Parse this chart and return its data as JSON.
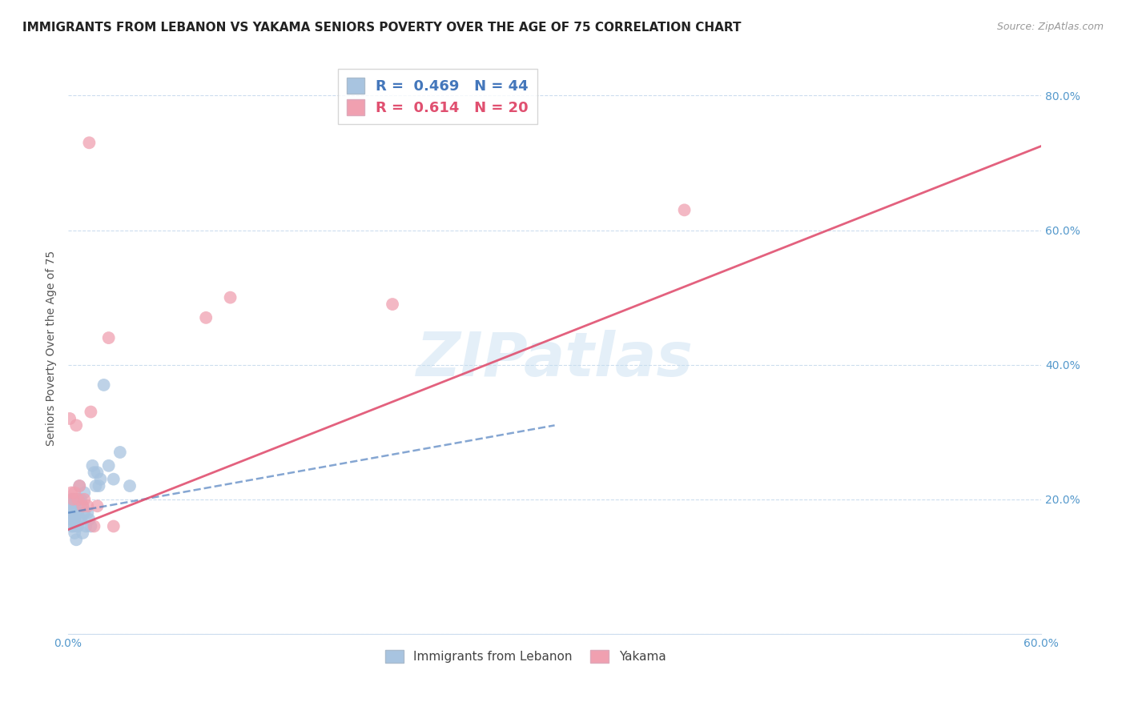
{
  "title": "IMMIGRANTS FROM LEBANON VS YAKAMA SENIORS POVERTY OVER THE AGE OF 75 CORRELATION CHART",
  "source": "Source: ZipAtlas.com",
  "xlabel": "",
  "ylabel": "Seniors Poverty Over the Age of 75",
  "xlim": [
    0.0,
    0.6
  ],
  "ylim": [
    0.0,
    0.85
  ],
  "xticks": [
    0.0,
    0.1,
    0.2,
    0.3,
    0.4,
    0.5,
    0.6
  ],
  "yticks": [
    0.0,
    0.2,
    0.4,
    0.6,
    0.8
  ],
  "ytick_labels": [
    "",
    "20.0%",
    "40.0%",
    "60.0%",
    "80.0%"
  ],
  "xtick_labels": [
    "0.0%",
    "",
    "",
    "",
    "",
    "",
    "60.0%"
  ],
  "blue_R": 0.469,
  "blue_N": 44,
  "pink_R": 0.614,
  "pink_N": 20,
  "blue_color": "#a8c4e0",
  "pink_color": "#f0a0b0",
  "blue_line_color": "#4477bb",
  "pink_line_color": "#e05070",
  "axis_color": "#5599cc",
  "watermark": "ZIPatlas",
  "blue_scatter_x": [
    0.001,
    0.001,
    0.002,
    0.002,
    0.002,
    0.002,
    0.003,
    0.003,
    0.003,
    0.003,
    0.004,
    0.004,
    0.004,
    0.005,
    0.005,
    0.005,
    0.005,
    0.006,
    0.006,
    0.006,
    0.007,
    0.007,
    0.007,
    0.008,
    0.008,
    0.009,
    0.009,
    0.01,
    0.01,
    0.011,
    0.012,
    0.013,
    0.014,
    0.015,
    0.016,
    0.017,
    0.018,
    0.019,
    0.02,
    0.022,
    0.025,
    0.028,
    0.032,
    0.038
  ],
  "blue_scatter_y": [
    0.19,
    0.18,
    0.2,
    0.18,
    0.17,
    0.16,
    0.2,
    0.19,
    0.17,
    0.16,
    0.19,
    0.17,
    0.15,
    0.2,
    0.18,
    0.16,
    0.14,
    0.2,
    0.18,
    0.16,
    0.22,
    0.2,
    0.17,
    0.2,
    0.17,
    0.19,
    0.15,
    0.21,
    0.18,
    0.16,
    0.18,
    0.17,
    0.16,
    0.25,
    0.24,
    0.22,
    0.24,
    0.22,
    0.23,
    0.37,
    0.25,
    0.23,
    0.27,
    0.22
  ],
  "pink_scatter_x": [
    0.001,
    0.002,
    0.003,
    0.004,
    0.005,
    0.006,
    0.007,
    0.009,
    0.01,
    0.012,
    0.013,
    0.014,
    0.016,
    0.018,
    0.025,
    0.028,
    0.085,
    0.1,
    0.2,
    0.38
  ],
  "pink_scatter_y": [
    0.32,
    0.21,
    0.2,
    0.21,
    0.31,
    0.2,
    0.22,
    0.19,
    0.2,
    0.19,
    0.73,
    0.33,
    0.16,
    0.19,
    0.44,
    0.16,
    0.47,
    0.5,
    0.49,
    0.63
  ],
  "blue_line_x": [
    0.0,
    0.3
  ],
  "blue_line_y": [
    0.18,
    0.31
  ],
  "pink_line_x": [
    0.0,
    0.6
  ],
  "pink_line_y": [
    0.155,
    0.725
  ],
  "background_color": "#ffffff",
  "grid_color": "#ccddee",
  "title_fontsize": 11,
  "label_fontsize": 10
}
